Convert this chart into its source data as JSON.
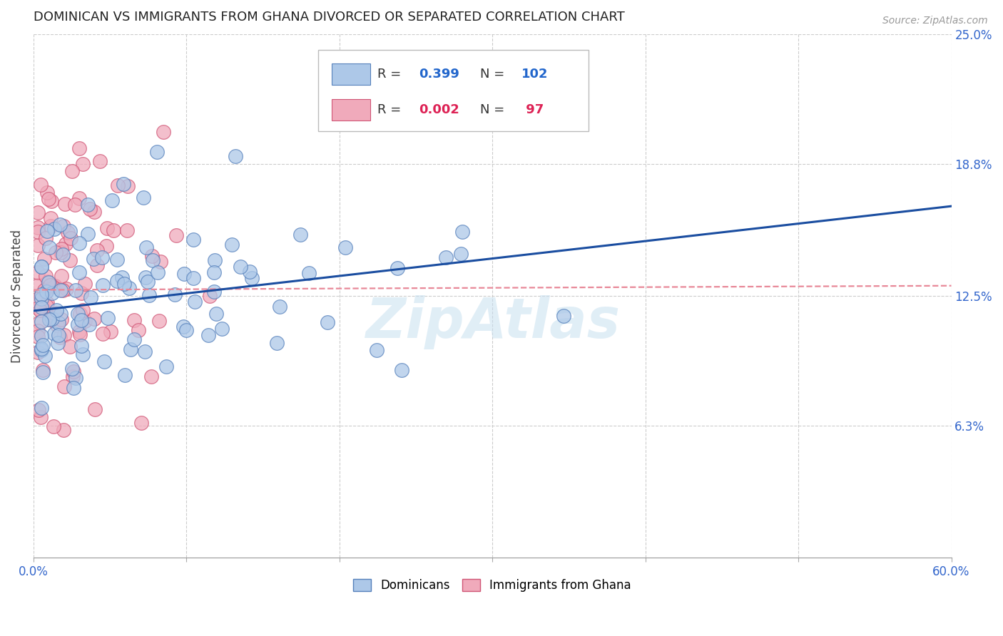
{
  "title": "DOMINICAN VS IMMIGRANTS FROM GHANA DIVORCED OR SEPARATED CORRELATION CHART",
  "source": "Source: ZipAtlas.com",
  "ylabel": "Divorced or Separated",
  "xlim": [
    0.0,
    0.6
  ],
  "ylim": [
    0.0,
    0.25
  ],
  "ytick_labels_right": [
    "25.0%",
    "18.8%",
    "12.5%",
    "6.3%"
  ],
  "ytick_values_right": [
    0.25,
    0.188,
    0.125,
    0.063
  ],
  "watermark": "ZipAtlas",
  "dominicans_color": "#adc8e8",
  "dominicans_edge": "#5580bb",
  "ghana_color": "#f0aabb",
  "ghana_edge": "#d05575",
  "blue_line_color": "#1a4da0",
  "pink_line_color": "#e88898",
  "blue_line_x0": 0.0,
  "blue_line_y0": 0.118,
  "blue_line_x1": 0.6,
  "blue_line_y1": 0.168,
  "pink_line_x0": 0.0,
  "pink_line_y0": 0.128,
  "pink_line_x1": 0.6,
  "pink_line_y1": 0.13
}
